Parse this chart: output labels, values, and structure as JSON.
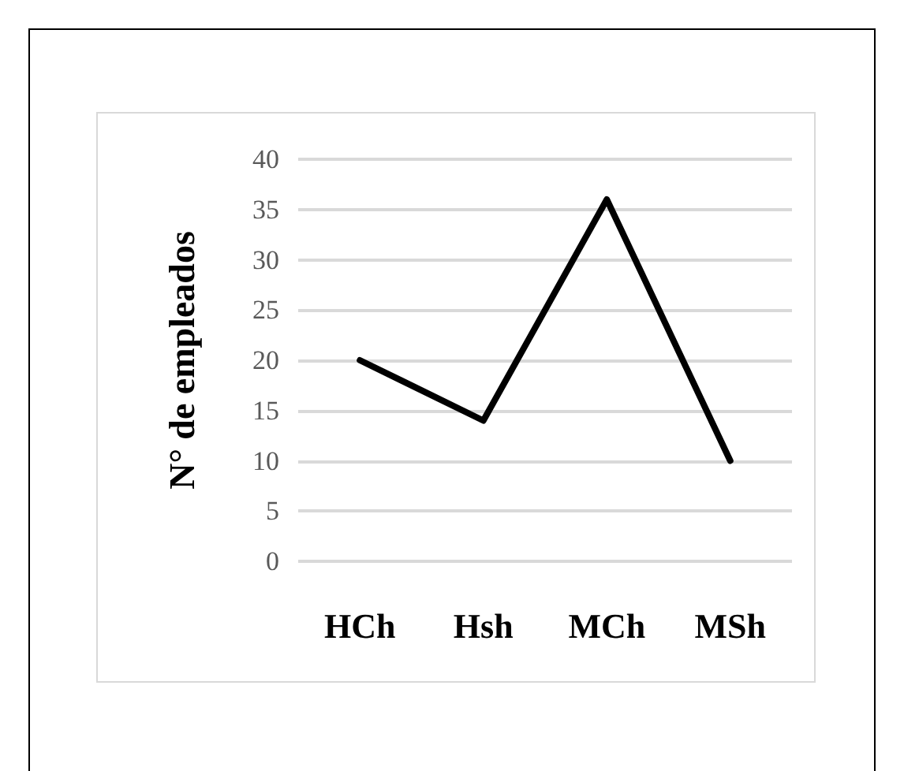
{
  "chart_data": {
    "type": "line",
    "ylabel": "N° de empleados",
    "categories": [
      "HCh",
      "Hsh",
      "MCh",
      "MSh"
    ],
    "series": [
      {
        "color": "#000000",
        "values": [
          20,
          14,
          36,
          10
        ]
      }
    ],
    "ylim": [
      0,
      40
    ],
    "yticks": [
      0,
      5,
      10,
      15,
      20,
      25,
      30,
      35,
      40
    ],
    "grid": "y",
    "marker": "none",
    "line_style": "solid"
  }
}
